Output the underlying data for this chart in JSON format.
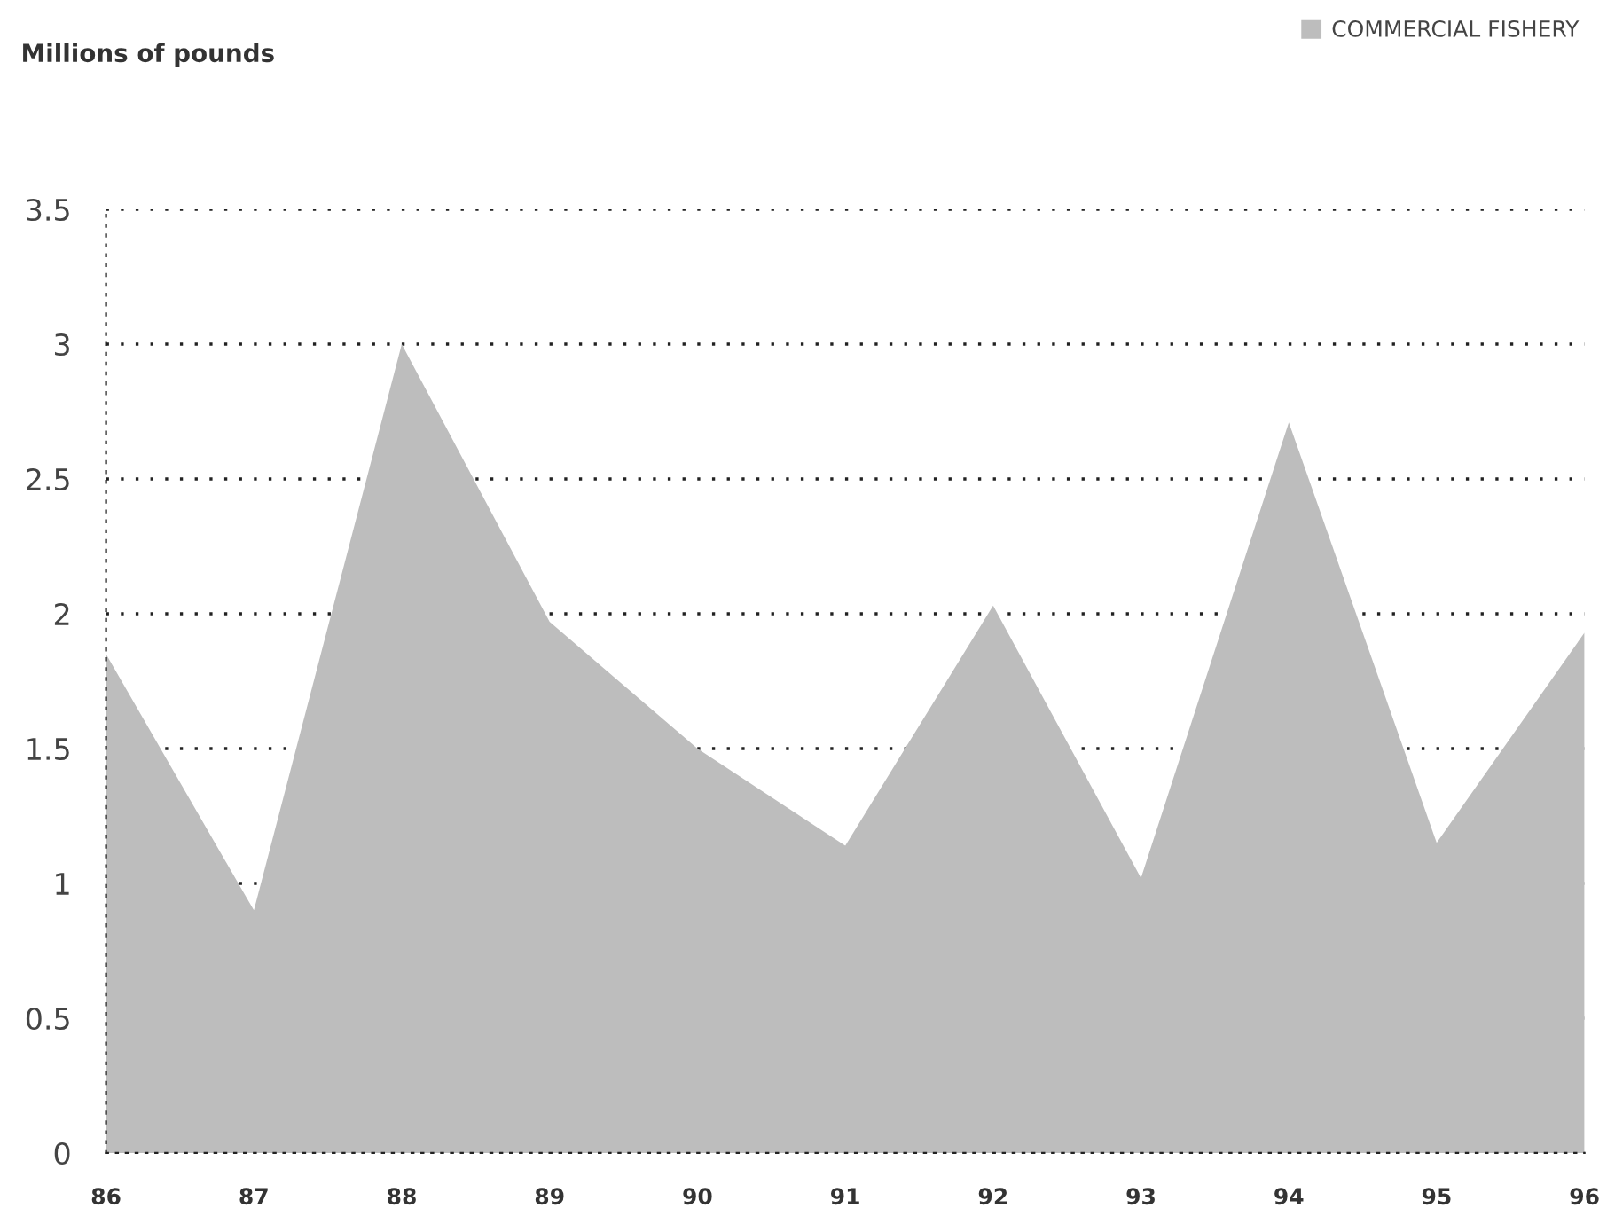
{
  "chart_data": {
    "type": "area",
    "annotations": [
      "Millions of pounds"
    ],
    "categories": [
      "86",
      "87",
      "88",
      "89",
      "90",
      "91",
      "92",
      "93",
      "94",
      "95",
      "96"
    ],
    "series": [
      {
        "name": "COMMERCIAL FISHERY",
        "color": "#bdbdbd",
        "values": [
          1.85,
          0.9,
          3.0,
          1.97,
          1.5,
          1.14,
          2.03,
          1.02,
          2.71,
          1.15,
          1.93
        ]
      }
    ],
    "ylim": [
      0,
      3.5
    ],
    "yticks": [
      0,
      0.5,
      1,
      1.5,
      2,
      2.5,
      3,
      3.5
    ],
    "grid": "y",
    "legend": "top right"
  }
}
